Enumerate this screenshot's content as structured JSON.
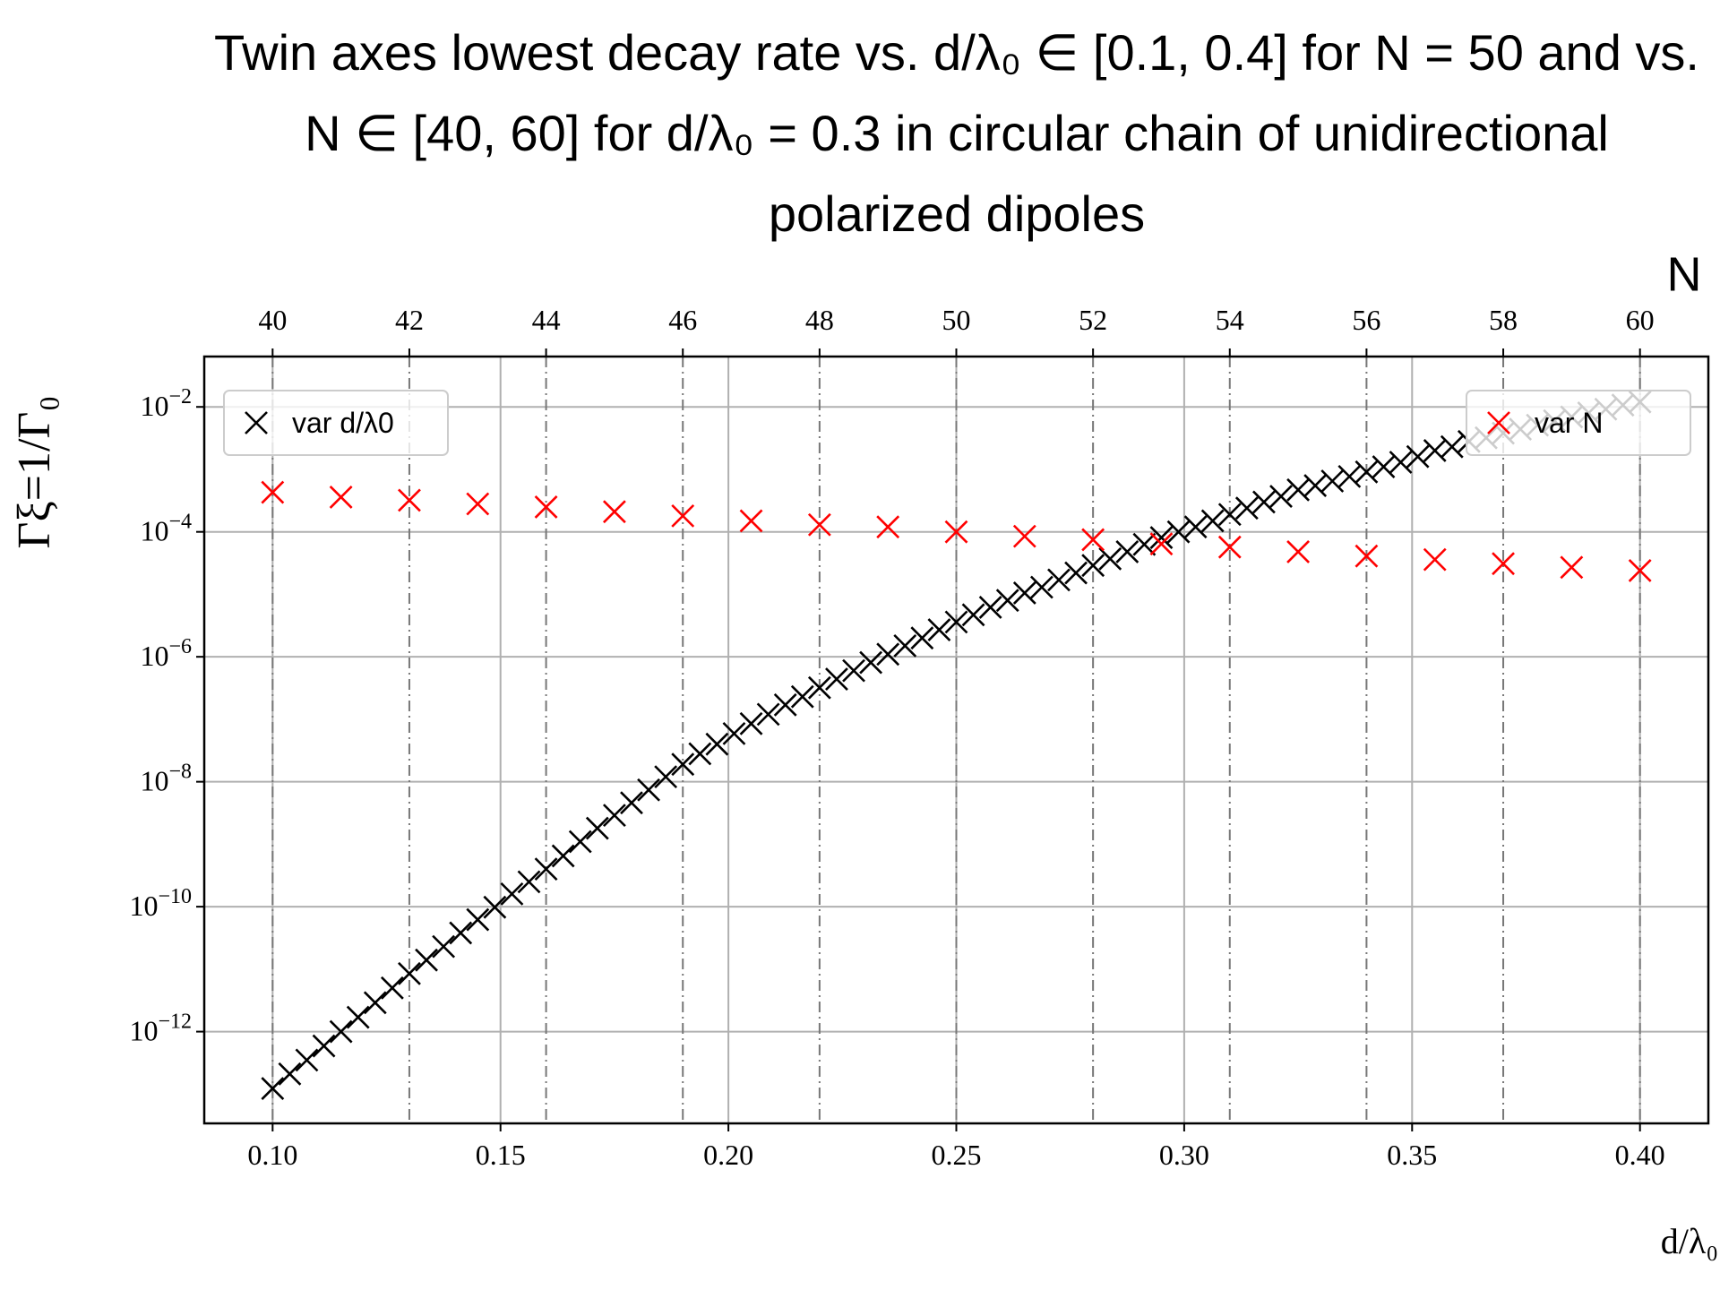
{
  "chart_data": {
    "type": "scatter",
    "title": "Twin axes lowest decay rate vs. d/λ₀ ∈ [0.1, 0.4] for N = 50 and vs. N ∈ [40, 60] for d/λ₀ = 0.3 in circular chain of unidirectional polarized dipoles",
    "xlabel": "d/λ₀",
    "x2label": "N",
    "ylabel": "Γξ=1/Γ₀",
    "xlim": [
      0.085,
      0.415
    ],
    "xticks": [
      {
        "value": 0.1,
        "label": "0.10"
      },
      0.15,
      {
        "value": 0.2,
        "label": "0.20"
      },
      0.25,
      {
        "value": 0.3,
        "label": "0.30"
      },
      0.35,
      {
        "value": 0.4,
        "label": "0.40"
      }
    ],
    "x2lim": [
      39,
      61
    ],
    "x2ticks": [
      40,
      42,
      44,
      46,
      48,
      50,
      52,
      54,
      56,
      58,
      60
    ],
    "ylim": [
      3.4e-14,
      0.064
    ],
    "ylog": true,
    "yticks": [
      {
        "value": 0.01,
        "label": "10−2"
      },
      {
        "value": 0.0001,
        "label": "10−4"
      },
      {
        "value": 1e-06,
        "label": "10−6"
      },
      {
        "value": 1e-08,
        "label": "10−8"
      },
      {
        "value": 1e-10,
        "label": "10−10"
      },
      {
        "value": 1e-12,
        "label": "10−12"
      }
    ],
    "grid": true,
    "series": [
      {
        "name": "var d/λ0",
        "color": "#000000",
        "legend_loc": "upper left",
        "x": [
          0.1,
          0.10375,
          0.1075,
          0.11125,
          0.115,
          0.11875,
          0.1225,
          0.12625,
          0.13,
          0.13375,
          0.1375,
          0.14125,
          0.145,
          0.14875,
          0.1525,
          0.15625,
          0.16,
          0.16375,
          0.1675,
          0.17125,
          0.175,
          0.17875,
          0.1825,
          0.18625,
          0.19,
          0.19375,
          0.1975,
          0.20125,
          0.205,
          0.20875,
          0.2125,
          0.21625,
          0.22,
          0.22375,
          0.2275,
          0.23125,
          0.235,
          0.23875,
          0.2425,
          0.24625,
          0.25,
          0.25375,
          0.2575,
          0.26125,
          0.265,
          0.26875,
          0.2725,
          0.27625,
          0.28,
          0.28375,
          0.2875,
          0.29125,
          0.295,
          0.29875,
          0.3025,
          0.30625,
          0.31,
          0.31375,
          0.3175,
          0.32125,
          0.325,
          0.32875,
          0.3325,
          0.33625,
          0.34,
          0.34375,
          0.3475,
          0.35125,
          0.355,
          0.35875,
          0.3625,
          0.36625,
          0.37,
          0.37375,
          0.3775,
          0.38125,
          0.385,
          0.38875,
          0.3925,
          0.39625,
          0.4
        ],
        "values": [
          1.23e-13,
          2.1e-13,
          3.5e-13,
          5.9e-13,
          1e-12,
          1.7e-12,
          2.9e-12,
          5e-12,
          8.5e-12,
          1.4e-11,
          2.3e-11,
          3.8e-11,
          6.2e-11,
          9.8e-11,
          1.6e-10,
          2.5e-10,
          4e-10,
          6.5e-10,
          1.1e-09,
          1.8e-09,
          2.9e-09,
          4.6e-09,
          7.4e-09,
          1.2e-08,
          1.9e-08,
          2.8e-08,
          4e-08,
          5.9e-08,
          8.5e-08,
          1.2e-07,
          1.7e-07,
          2.3e-07,
          3.2e-07,
          4.4e-07,
          6e-07,
          8.1e-07,
          1.1e-06,
          1.5e-06,
          2e-06,
          2.7e-06,
          3.6e-06,
          4.7e-06,
          6.2e-06,
          8e-06,
          1.05e-05,
          1.3e-05,
          1.7e-05,
          2.2e-05,
          2.9e-05,
          3.7e-05,
          4.8e-05,
          6.3e-05,
          8.1e-05,
          0.0001,
          0.00012,
          0.00015,
          0.00019,
          0.00024,
          0.0003,
          0.00037,
          0.00047,
          0.00055,
          0.00065,
          0.00077,
          0.00091,
          0.0011,
          0.0013,
          0.0016,
          0.002,
          0.0023,
          0.0028,
          0.0032,
          0.0038,
          0.0044,
          0.0051,
          0.006,
          0.0069,
          0.008,
          0.0092,
          0.0107,
          0.012
        ]
      },
      {
        "name": "var N",
        "color": "#ff0000",
        "axis": "x2",
        "legend_loc": "upper right",
        "x": [
          40,
          41,
          42,
          43,
          44,
          45,
          46,
          47,
          48,
          49,
          50,
          51,
          52,
          53,
          54,
          55,
          56,
          57,
          58,
          59,
          60
        ],
        "values": [
          0.00043,
          0.00036,
          0.00032,
          0.00028,
          0.00025,
          0.00021,
          0.00018,
          0.00015,
          0.00013,
          0.00012,
          0.0001,
          8.5e-05,
          7.5e-05,
          6.4e-05,
          5.7e-05,
          4.8e-05,
          4.1e-05,
          3.6e-05,
          3.1e-05,
          2.7e-05,
          2.4e-05
        ]
      }
    ]
  }
}
